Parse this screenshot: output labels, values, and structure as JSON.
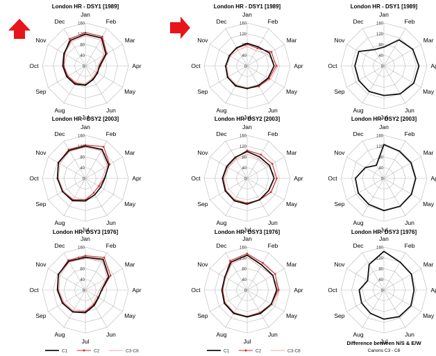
{
  "colors": {
    "arrow": "#e8141c",
    "c1": "#111111",
    "c2": "#d42a2a",
    "c3c8": "#e88f8f",
    "grid": "#b8b8b8"
  },
  "icons": {
    "arrow_up": "arrow-up-icon",
    "arrow_right": "arrow-right-icon"
  },
  "chart_data": {
    "type": "radar",
    "axes": [
      "Jan",
      "Feb",
      "Mar",
      "Apr",
      "May",
      "Jun",
      "Jul",
      "Aug",
      "Sep",
      "Oct",
      "Nov",
      "Dec"
    ],
    "rings": [
      40,
      80,
      120,
      160
    ],
    "ring_labels": [
      "0",
      "40",
      "80",
      "120",
      "160"
    ],
    "rmax": 160,
    "legend": [
      "C1",
      "C2",
      "C3-C8"
    ],
    "footnote": [
      "Difference between N/S & E/W",
      "Canons C3 - C8"
    ],
    "panels": [
      {
        "title": "London HR - DSY1 [1989]",
        "series": [
          {
            "key": "C1",
            "values": [
              118,
              120,
              88,
              52,
              52,
              58,
              72,
              78,
              80,
              84,
              92,
              110
            ]
          },
          {
            "key": "C2",
            "values": [
              124,
              126,
              92,
              56,
              50,
              56,
              70,
              74,
              76,
              80,
              90,
              116
            ]
          },
          {
            "key": "C3-C8",
            "values": [
              112,
              112,
              80,
              46,
              46,
              52,
              66,
              70,
              74,
              80,
              88,
              104
            ]
          }
        ]
      },
      {
        "title": "London HR - DSY2 [2003]",
        "series": [
          {
            "key": "C1",
            "values": [
              120,
              124,
              100,
              72,
              66,
              70,
              84,
              96,
              98,
              104,
              116,
              120
            ]
          },
          {
            "key": "C2",
            "values": [
              124,
              136,
              104,
              70,
              58,
              62,
              80,
              92,
              98,
              104,
              116,
              124
            ]
          },
          {
            "key": "C3-C8",
            "values": [
              116,
              118,
              94,
              62,
              56,
              62,
              78,
              90,
              94,
              100,
              110,
              116
            ]
          }
        ]
      },
      {
        "title": "London HR- DSY3 [1976]",
        "series": [
          {
            "key": "C1",
            "values": [
              122,
              132,
              100,
              60,
              56,
              66,
              84,
              94,
              98,
              104,
              116,
              124
            ]
          },
          {
            "key": "C2",
            "values": [
              128,
              140,
              108,
              62,
              54,
              62,
              80,
              92,
              96,
              102,
              116,
              128
            ]
          },
          {
            "key": "C3-C8",
            "values": [
              118,
              126,
              94,
              52,
              48,
              58,
              76,
              88,
              92,
              98,
              110,
              120
            ]
          }
        ]
      },
      {
        "title": "London HR - DSY1 [1989]",
        "series": [
          {
            "key": "C1",
            "values": [
              84,
              82,
              96,
              100,
              90,
              84,
              84,
              86,
              84,
              80,
              76,
              78
            ]
          },
          {
            "key": "C2",
            "values": [
              80,
              76,
              104,
              108,
              94,
              88,
              84,
              84,
              84,
              80,
              76,
              76
            ]
          },
          {
            "key": "C3-C8",
            "values": [
              72,
              66,
              86,
              114,
              100,
              86,
              82,
              82,
              80,
              76,
              72,
              68
            ]
          }
        ]
      },
      {
        "title": "London HR- DSY2 [2003]",
        "series": [
          {
            "key": "C1",
            "values": [
              100,
              92,
              96,
              100,
              92,
              92,
              96,
              96,
              94,
              92,
              88,
              90
            ]
          },
          {
            "key": "C2",
            "values": [
              104,
              102,
              108,
              110,
              102,
              92,
              92,
              94,
              92,
              90,
              86,
              88
            ]
          },
          {
            "key": "C3-C8",
            "values": [
              90,
              84,
              90,
              112,
              104,
              94,
              92,
              90,
              90,
              86,
              82,
              84
            ]
          }
        ]
      },
      {
        "title": "London HR- DSY3 [1976]",
        "series": [
          {
            "key": "C1",
            "values": [
              130,
              108,
              110,
              110,
              104,
              100,
              100,
              100,
              98,
              94,
              96,
              120
            ]
          },
          {
            "key": "C2",
            "values": [
              136,
              116,
              120,
              116,
              104,
              96,
              98,
              98,
              96,
              92,
              96,
              126
            ]
          },
          {
            "key": "C3-C8",
            "values": [
              122,
              100,
              108,
              120,
              110,
              100,
              98,
              96,
              94,
              90,
              92,
              114
            ]
          }
        ]
      },
      {
        "title": "London HR - DSY1 [1989]",
        "series": [
          {
            "key": "C1",
            "values": [
              70,
              112,
              124,
              130,
              128,
              120,
              110,
              110,
              108,
              108,
              108,
              70
            ]
          }
        ]
      },
      {
        "title": "London HR- DSY2 [2003]",
        "series": [
          {
            "key": "C1",
            "values": [
              126,
              116,
              116,
              118,
              118,
              120,
              120,
              112,
              110,
              106,
              80,
              56
            ]
          }
        ]
      },
      {
        "title": "London HR- DSY3 [1976]",
        "series": [
          {
            "key": "C1",
            "values": [
              144,
              120,
              118,
              112,
              116,
              114,
              108,
              100,
              96,
              92,
              70,
              110
            ]
          }
        ]
      }
    ]
  }
}
